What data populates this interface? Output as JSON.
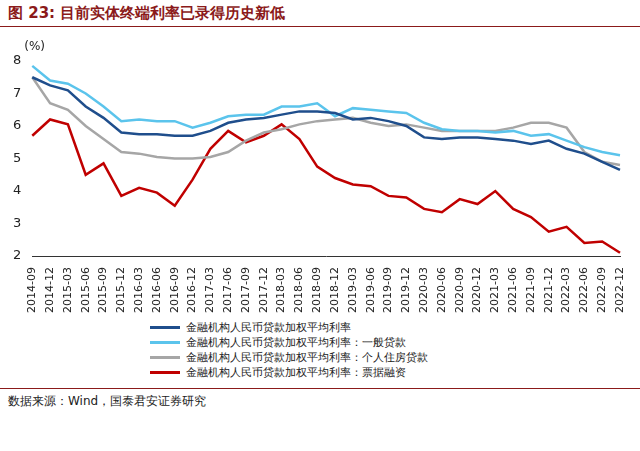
{
  "chart_data": {
    "type": "line",
    "title": "图 23: 目前实体终端利率已录得历史新低",
    "y_label": "(%)",
    "source": "数据来源：Wind，国泰君安证券研究",
    "categories": [
      "2014-09",
      "2014-12",
      "2015-03",
      "2015-06",
      "2015-09",
      "2015-12",
      "2016-03",
      "2016-06",
      "2016-09",
      "2016-12",
      "2017-03",
      "2017-06",
      "2017-09",
      "2017-12",
      "2018-03",
      "2018-06",
      "2018-09",
      "2018-12",
      "2019-03",
      "2019-06",
      "2019-09",
      "2019-12",
      "2020-03",
      "2020-06",
      "2020-09",
      "2020-12",
      "2021-03",
      "2021-06",
      "2021-09",
      "2021-12",
      "2022-03",
      "2022-06",
      "2022-09",
      "2022-12"
    ],
    "series": [
      {
        "name": "金融机构人民币贷款加权平均利率",
        "color": "#1f4e8c",
        "values": [
          7.5,
          7.25,
          7.1,
          6.6,
          6.25,
          5.8,
          5.75,
          5.75,
          5.7,
          5.7,
          5.85,
          6.1,
          6.2,
          6.25,
          6.35,
          6.45,
          6.45,
          6.4,
          6.2,
          6.25,
          6.15,
          6.0,
          5.65,
          5.6,
          5.65,
          5.65,
          5.6,
          5.55,
          5.45,
          5.55,
          5.3,
          5.15,
          4.9,
          4.65
        ]
      },
      {
        "name": "金融机构人民币贷款加权平均利率：一般贷款",
        "color": "#5bc4ec",
        "values": [
          7.85,
          7.4,
          7.3,
          7.0,
          6.6,
          6.15,
          6.2,
          6.15,
          6.15,
          5.95,
          6.1,
          6.3,
          6.35,
          6.35,
          6.6,
          6.6,
          6.7,
          6.3,
          6.55,
          6.5,
          6.45,
          6.4,
          6.1,
          5.9,
          5.85,
          5.85,
          5.8,
          5.85,
          5.7,
          5.75,
          5.55,
          5.35,
          5.2,
          5.1
        ]
      },
      {
        "name": "金融机构人民币贷款加权平均利率：个人住房贷款",
        "color": "#a6a6a6",
        "values": [
          7.5,
          6.7,
          6.5,
          6.0,
          5.6,
          5.2,
          5.15,
          5.05,
          5.0,
          5.0,
          5.05,
          5.2,
          5.55,
          5.8,
          5.9,
          6.05,
          6.15,
          6.2,
          6.25,
          6.1,
          6.0,
          6.05,
          5.95,
          5.85,
          5.85,
          5.85,
          5.85,
          5.95,
          6.1,
          6.1,
          5.95,
          5.2,
          4.9,
          4.8
        ]
      },
      {
        "name": "金融机构人民币贷款加权平均利率：票据融资",
        "color": "#c00000",
        "values": [
          5.7,
          6.2,
          6.05,
          4.5,
          4.85,
          3.85,
          4.1,
          3.95,
          3.55,
          4.35,
          5.3,
          5.85,
          5.5,
          5.7,
          6.05,
          5.6,
          4.75,
          4.4,
          4.2,
          4.15,
          3.85,
          3.8,
          3.45,
          3.35,
          3.75,
          3.6,
          4.0,
          3.45,
          3.2,
          2.75,
          2.9,
          2.4,
          2.45,
          2.1
        ]
      }
    ],
    "ylim": [
      2,
      8
    ],
    "yticks": [
      2,
      3,
      4,
      5,
      6,
      7,
      8
    ],
    "grid": false,
    "legend": "bottom"
  }
}
